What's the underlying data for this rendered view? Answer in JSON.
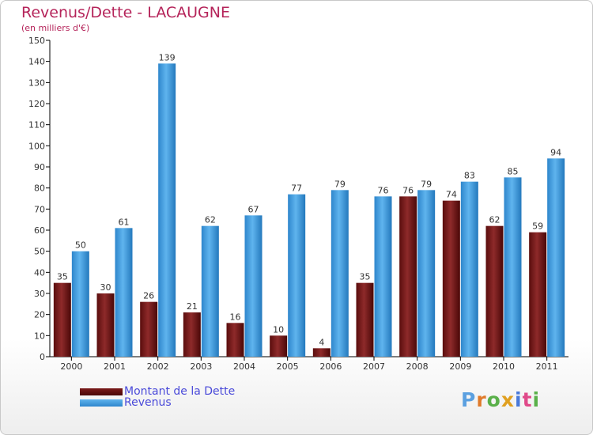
{
  "chart_data": {
    "type": "bar",
    "title": "Revenus/Dette - LACAUGNE",
    "subtitle": "(en milliers d'€)",
    "categories": [
      "2000",
      "2001",
      "2002",
      "2003",
      "2004",
      "2005",
      "2006",
      "2007",
      "2008",
      "2009",
      "2010",
      "2011"
    ],
    "series": [
      {
        "name": "Montant de la Dette",
        "color": "#7a1a1a",
        "values": [
          35,
          30,
          26,
          21,
          16,
          10,
          4,
          35,
          76,
          74,
          62,
          59
        ]
      },
      {
        "name": "Revenus",
        "color": "#3d9ee0",
        "values": [
          50,
          61,
          139,
          62,
          67,
          77,
          79,
          76,
          79,
          83,
          85,
          94
        ]
      }
    ],
    "ylim": [
      0,
      150
    ],
    "ytick_step": 10,
    "grid": false,
    "legend_position": "bottom-left"
  },
  "logo": {
    "text": "Proxiti",
    "colors": [
      "#5ba0e0",
      "#e07a2a",
      "#5ab04a",
      "#e0a020",
      "#4a7ad9",
      "#e04a8a",
      "#5ab04a"
    ]
  }
}
